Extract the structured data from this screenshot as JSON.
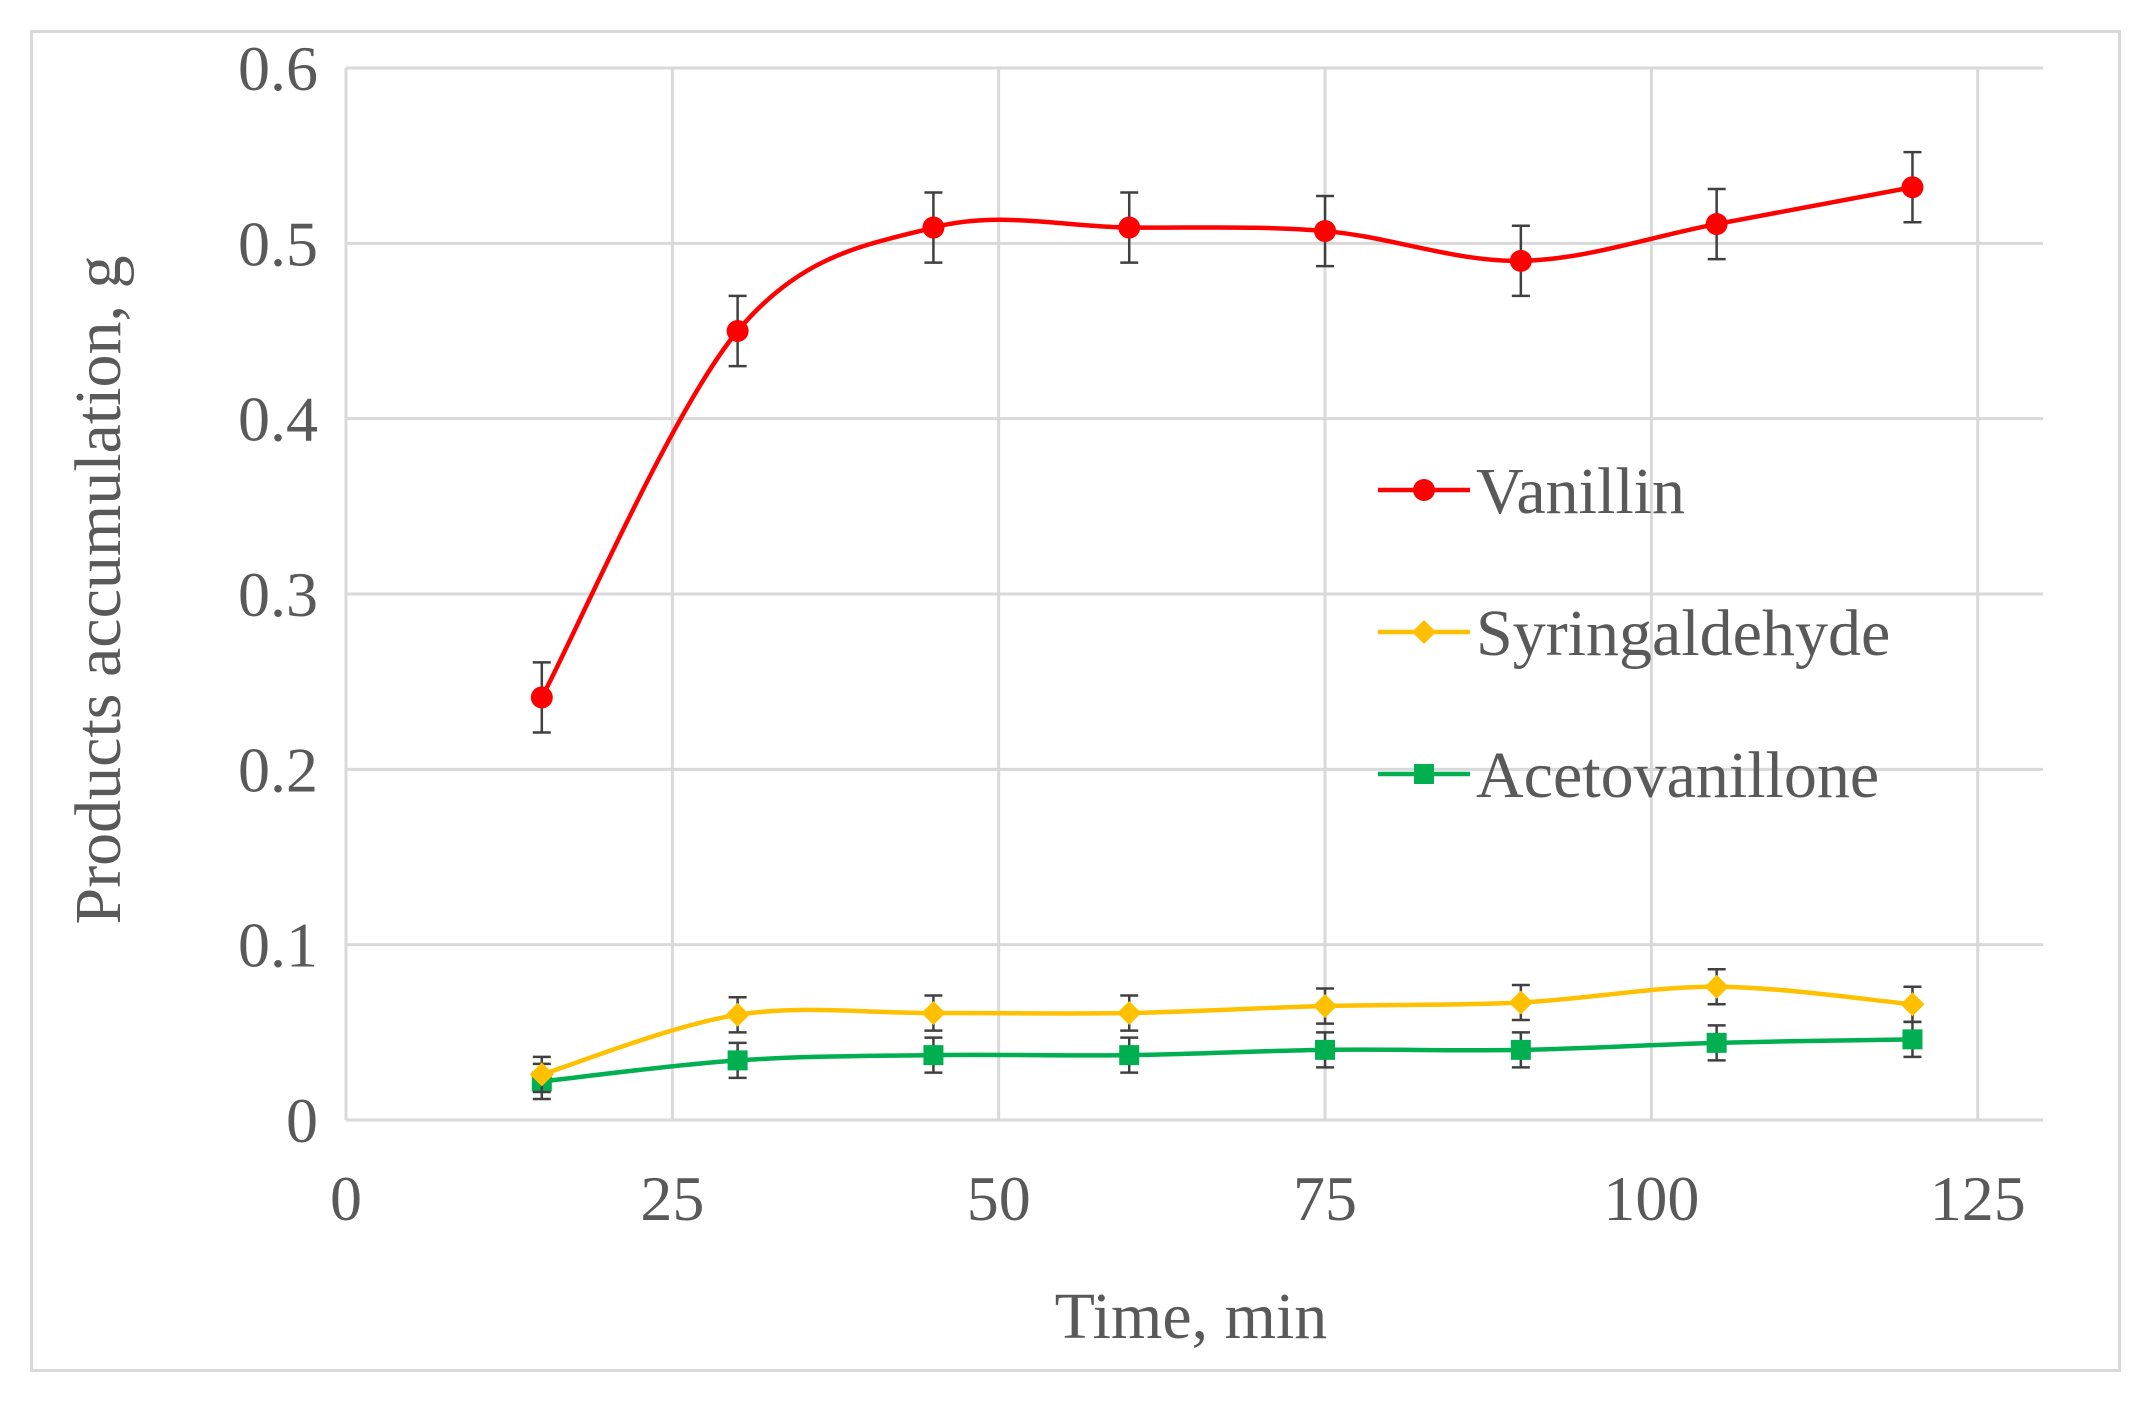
{
  "chart_data": {
    "type": "line",
    "title": "",
    "xlabel": "Time, min",
    "ylabel": "Products accumulation, g",
    "xlim": [
      0,
      130
    ],
    "ylim": [
      0,
      0.6
    ],
    "xticks": [
      0,
      25,
      50,
      75,
      100,
      125
    ],
    "xtick_labels": [
      "0",
      "25",
      "50",
      "75",
      "100",
      "125"
    ],
    "yticks": [
      0,
      0.1,
      0.2,
      0.3,
      0.4,
      0.5,
      0.6
    ],
    "ytick_labels": [
      "0",
      "0.1",
      "0.2",
      "0.3",
      "0.4",
      "0.5",
      "0.6"
    ],
    "grid": true,
    "legend_position": "right",
    "x": [
      15,
      30,
      45,
      60,
      75,
      90,
      105,
      120
    ],
    "series": [
      {
        "name": "Vanillin",
        "color": "#ff0000",
        "marker": "circle",
        "values": [
          0.241,
          0.45,
          0.509,
          0.509,
          0.507,
          0.49,
          0.511,
          0.532
        ],
        "error": [
          0.02,
          0.02,
          0.02,
          0.02,
          0.02,
          0.02,
          0.02,
          0.02
        ]
      },
      {
        "name": "Syringaldehyde",
        "color": "#ffc000",
        "marker": "diamond",
        "values": [
          0.026,
          0.06,
          0.061,
          0.061,
          0.065,
          0.067,
          0.076,
          0.066
        ],
        "error": [
          0.01,
          0.01,
          0.01,
          0.01,
          0.01,
          0.01,
          0.01,
          0.01
        ]
      },
      {
        "name": "Acetovanillone",
        "color": "#00b050",
        "marker": "square",
        "values": [
          0.022,
          0.034,
          0.037,
          0.037,
          0.04,
          0.04,
          0.044,
          0.046
        ],
        "error": [
          0.01,
          0.01,
          0.01,
          0.01,
          0.01,
          0.01,
          0.01,
          0.01
        ]
      }
    ]
  }
}
